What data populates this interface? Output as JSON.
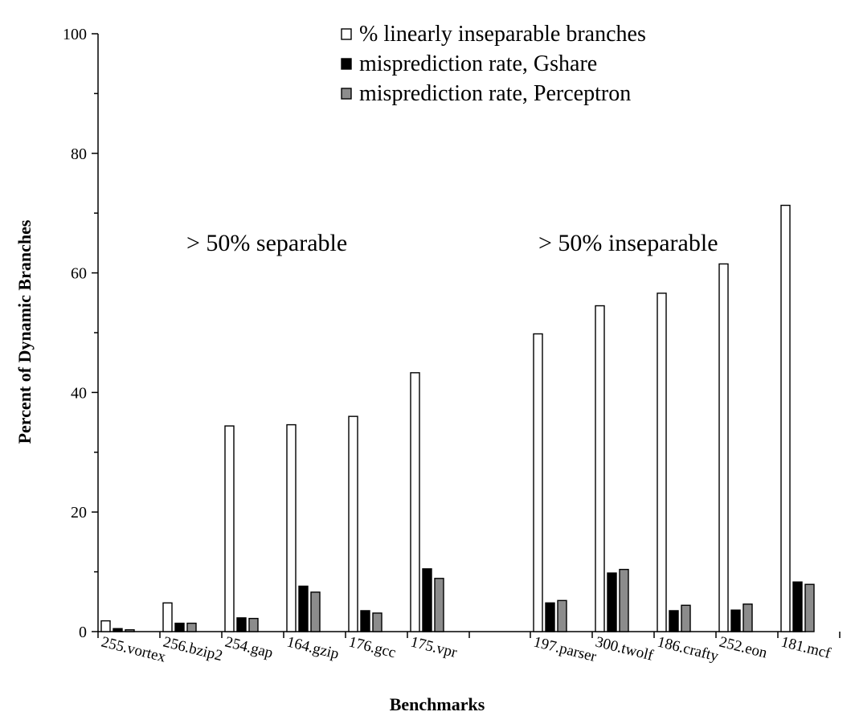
{
  "chart_data": {
    "type": "bar",
    "xlabel": "Benchmarks",
    "ylabel": "Percent of Dynamic Branches",
    "ylim": [
      0,
      100
    ],
    "yticks": [
      0,
      20,
      40,
      60,
      80,
      100
    ],
    "categories": [
      "255.vortex",
      "256.bzip2",
      "254.gap",
      "164.gzip",
      "176.gcc",
      "175.vpr",
      "197.parser",
      "300.twolf",
      "186.crafty",
      "252.eon",
      "181.mcf"
    ],
    "series": [
      {
        "name": "% linearly inseparable branches",
        "color": "#ffffff",
        "values": [
          1.8,
          4.8,
          34.4,
          34.6,
          36.0,
          43.3,
          49.8,
          54.5,
          56.6,
          61.5,
          71.3
        ]
      },
      {
        "name": "misprediction rate, Gshare",
        "color": "#000000",
        "values": [
          0.5,
          1.4,
          2.3,
          7.6,
          3.5,
          10.5,
          4.8,
          9.8,
          3.5,
          3.6,
          8.3
        ]
      },
      {
        "name": "misprediction rate, Perceptron",
        "color": "#8c8c8c",
        "values": [
          0.3,
          1.4,
          2.2,
          6.6,
          3.1,
          8.9,
          5.2,
          10.4,
          4.4,
          4.6,
          7.9
        ]
      }
    ],
    "annotations": [
      "> 50% separable",
      "> 50% inseparable"
    ],
    "legend_position": "top-right",
    "grid": false
  }
}
